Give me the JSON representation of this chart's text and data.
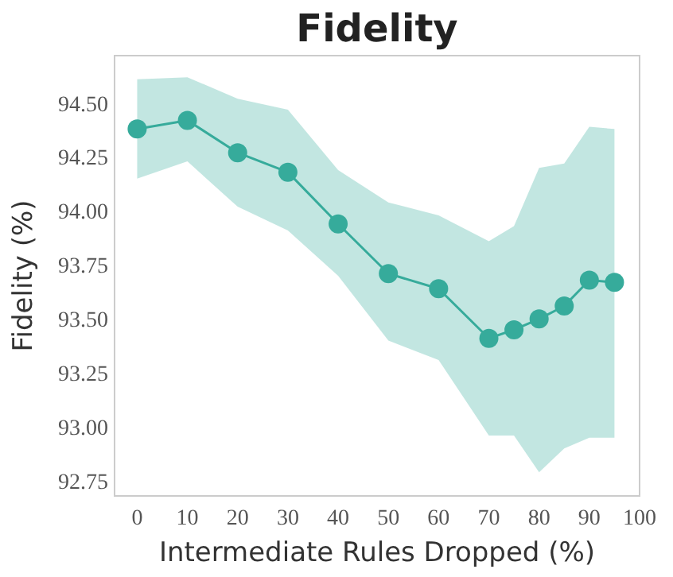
{
  "chart_data": {
    "type": "line",
    "title": "Fidelity",
    "xlabel": "Intermediate Rules Dropped (%)",
    "ylabel": "Fidelity (%)",
    "x": [
      0,
      10,
      20,
      30,
      40,
      50,
      60,
      70,
      75,
      80,
      85,
      90,
      95
    ],
    "series": [
      {
        "color": "#36ab9b",
        "values": [
          94.38,
          94.42,
          94.27,
          94.18,
          93.94,
          93.71,
          93.64,
          93.41,
          93.45,
          93.5,
          93.56,
          93.68,
          93.67
        ],
        "upper": [
          94.61,
          94.62,
          94.52,
          94.47,
          94.19,
          94.04,
          93.98,
          93.86,
          93.93,
          94.2,
          94.22,
          94.39,
          94.38
        ],
        "lower": [
          94.15,
          94.23,
          94.02,
          93.91,
          93.7,
          93.4,
          93.31,
          92.96,
          92.96,
          92.79,
          92.9,
          92.95,
          92.95
        ]
      }
    ],
    "xlim": [
      -4.5,
      100
    ],
    "ylim": [
      92.68,
      94.72
    ],
    "xticks": [
      0,
      10,
      20,
      30,
      40,
      50,
      60,
      70,
      80,
      90,
      100
    ],
    "yticks": [
      {
        "value": 92.75,
        "label": "92.75"
      },
      {
        "value": 93,
        "label": "93.00"
      },
      {
        "value": 93.25,
        "label": "93.25"
      },
      {
        "value": 93.5,
        "label": "93.50"
      },
      {
        "value": 93.75,
        "label": "93.75"
      },
      {
        "value": 94,
        "label": "94.00"
      },
      {
        "value": 94.25,
        "label": "94.25"
      },
      {
        "value": 94.5,
        "label": "94.50"
      }
    ],
    "grid": false,
    "marker": "circle",
    "line_style": "solid"
  }
}
